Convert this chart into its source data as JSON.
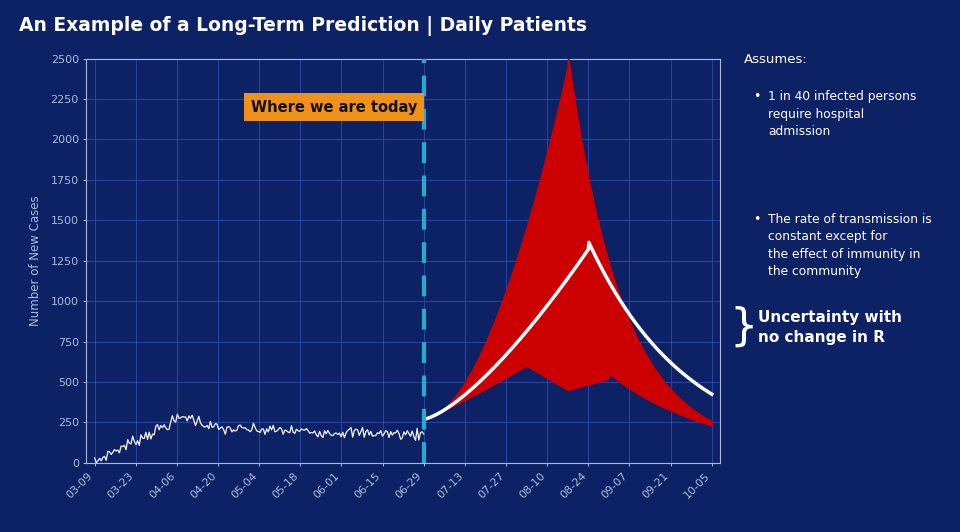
{
  "title": "An Example of a Long-Term Prediction | Daily Patients",
  "ylabel": "Number of New Cases",
  "background_color": "#0d2165",
  "plot_bg_color": "#0d2165",
  "title_color": "#ffffff",
  "axis_color": "#aabbdd",
  "grid_color": "#2a4aaa",
  "tick_labels": [
    "03-09",
    "03-23",
    "04-06",
    "04-20",
    "05-04",
    "05-18",
    "06-01",
    "06-15",
    "06-29",
    "07-13",
    "07-27",
    "08-10",
    "08-24",
    "09-07",
    "09-21",
    "10-05"
  ],
  "ylim": [
    0,
    2500
  ],
  "yticks": [
    0,
    250,
    500,
    750,
    1000,
    1250,
    1500,
    1750,
    2000,
    2250,
    2500
  ],
  "vline_color": "#29aacc",
  "annotation_text": "Where we are today",
  "annotation_bg": "#f0921a",
  "annotation_text_color": "#111100",
  "red_fill_color": "#cc0000",
  "white_line_color": "#ffffff",
  "dot_color": "#ffffff",
  "right_text_color": "#ffffff",
  "assumes_text": "Assumes:",
  "bullet1": "1 in 40 infected persons\nrequire hospital\nadmission",
  "bullet2": "The rate of transmission is\nconstant except for\nthe effect of immunity in\nthe community",
  "uncertainty_text": "Uncertainty with\nno change in R"
}
